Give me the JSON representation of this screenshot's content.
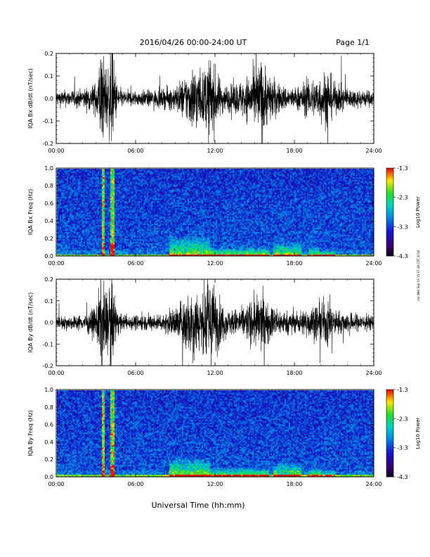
{
  "header": {
    "title": "2016/04/26  00:00-24:00 UT",
    "page": "Page 1/1"
  },
  "footer": {
    "xlabel": "Universal Time (hh:mm)",
    "side_stamp": "rnd Wed Sep 19 15:07:38 CDT 2018"
  },
  "chart_data": [
    {
      "type": "line",
      "ylabel": "IQA Bx dB/dt (nT/sec)",
      "xlim": [
        0,
        24
      ],
      "ylim": [
        -0.2,
        0.2
      ],
      "xticks": [
        "00:00",
        "06:00",
        "12:00",
        "18:00",
        "24:00"
      ],
      "yticks": [
        "-0.2",
        "-0.1",
        "0.0",
        "0.1",
        "0.2"
      ],
      "activity": [
        [
          0,
          0.03
        ],
        [
          2,
          0.035
        ],
        [
          3.0,
          0.06
        ],
        [
          3.4,
          0.2
        ],
        [
          3.6,
          0.16
        ],
        [
          3.9,
          0.12
        ],
        [
          4.2,
          0.2
        ],
        [
          4.6,
          0.06
        ],
        [
          5,
          0.03
        ],
        [
          6,
          0.03
        ],
        [
          8,
          0.035
        ],
        [
          9,
          0.05
        ],
        [
          10,
          0.1
        ],
        [
          10.5,
          0.14
        ],
        [
          11,
          0.09
        ],
        [
          11.6,
          0.16
        ],
        [
          12,
          0.12
        ],
        [
          12.5,
          0.06
        ],
        [
          13,
          0.05
        ],
        [
          14,
          0.07
        ],
        [
          15,
          0.11
        ],
        [
          15.5,
          0.16
        ],
        [
          16,
          0.1
        ],
        [
          17,
          0.05
        ],
        [
          18,
          0.04
        ],
        [
          19,
          0.07
        ],
        [
          20,
          0.09
        ],
        [
          20.5,
          0.12
        ],
        [
          21,
          0.06
        ],
        [
          22,
          0.04
        ],
        [
          24,
          0.03
        ]
      ],
      "grid": false
    },
    {
      "type": "heatmap",
      "ylabel": "IQA Bx Freq (Hz)",
      "xlim": [
        0,
        24
      ],
      "ylim": [
        0.0,
        1.0
      ],
      "xticks": [
        "00:00",
        "06:00",
        "12:00",
        "18:00",
        "24:00"
      ],
      "yticks": [
        "0.0",
        "0.2",
        "0.4",
        "0.6",
        "0.8",
        "1.0"
      ],
      "colorbar": {
        "label": "Log10 Power",
        "ticks": [
          "-1.3",
          "-2.3",
          "-3.3",
          "-4.3"
        ],
        "range": [
          -4.3,
          -1.3
        ]
      },
      "bursts": [
        [
          3.4,
          3.6
        ],
        [
          4.0,
          4.3
        ]
      ],
      "features": [
        [
          8.5,
          11.5,
          0.25
        ],
        [
          11.5,
          16,
          0.12
        ],
        [
          16.3,
          18.5,
          0.18
        ],
        [
          19,
          20,
          0.12
        ],
        [
          20,
          21,
          0.08
        ]
      ]
    },
    {
      "type": "line",
      "ylabel": "IQA By dB/dt (nT/sec)",
      "xlim": [
        0,
        24
      ],
      "ylim": [
        -0.2,
        0.2
      ],
      "xticks": [
        "00:00",
        "06:00",
        "12:00",
        "18:00",
        "24:00"
      ],
      "yticks": [
        "-0.2",
        "-0.1",
        "0.0",
        "0.1",
        "0.2"
      ],
      "activity": [
        [
          0,
          0.025
        ],
        [
          2,
          0.03
        ],
        [
          3.0,
          0.06
        ],
        [
          3.4,
          0.2
        ],
        [
          3.6,
          0.16
        ],
        [
          3.9,
          0.12
        ],
        [
          4.2,
          0.2
        ],
        [
          4.6,
          0.05
        ],
        [
          5,
          0.03
        ],
        [
          6,
          0.03
        ],
        [
          8,
          0.035
        ],
        [
          9,
          0.06
        ],
        [
          10,
          0.13
        ],
        [
          10.5,
          0.15
        ],
        [
          11,
          0.1
        ],
        [
          11.6,
          0.2
        ],
        [
          12,
          0.14
        ],
        [
          12.5,
          0.08
        ],
        [
          13,
          0.05
        ],
        [
          14,
          0.06
        ],
        [
          15,
          0.1
        ],
        [
          15.5,
          0.12
        ],
        [
          16,
          0.08
        ],
        [
          17,
          0.05
        ],
        [
          18,
          0.04
        ],
        [
          19,
          0.06
        ],
        [
          20,
          0.08
        ],
        [
          20.5,
          0.1
        ],
        [
          21,
          0.05
        ],
        [
          22,
          0.04
        ],
        [
          24,
          0.03
        ]
      ],
      "grid": false
    },
    {
      "type": "heatmap",
      "ylabel": "IQA By Freq (Hz)",
      "xlim": [
        0,
        24
      ],
      "ylim": [
        0.0,
        1.0
      ],
      "xticks": [
        "00:00",
        "06:00",
        "12:00",
        "18:00",
        "24:00"
      ],
      "yticks": [
        "0.0",
        "0.2",
        "0.4",
        "0.6",
        "0.8",
        "1.0"
      ],
      "colorbar": {
        "label": "Log10 Power",
        "ticks": [
          "-1.3",
          "-2.3",
          "-3.3",
          "-4.3"
        ],
        "range": [
          -4.3,
          -1.3
        ]
      },
      "bursts": [
        [
          3.4,
          3.6
        ],
        [
          4.0,
          4.3
        ]
      ],
      "features": [
        [
          8.5,
          11.5,
          0.25
        ],
        [
          11.5,
          16,
          0.12
        ],
        [
          16.3,
          18.5,
          0.18
        ],
        [
          19,
          20,
          0.12
        ],
        [
          20,
          21,
          0.08
        ]
      ]
    }
  ]
}
